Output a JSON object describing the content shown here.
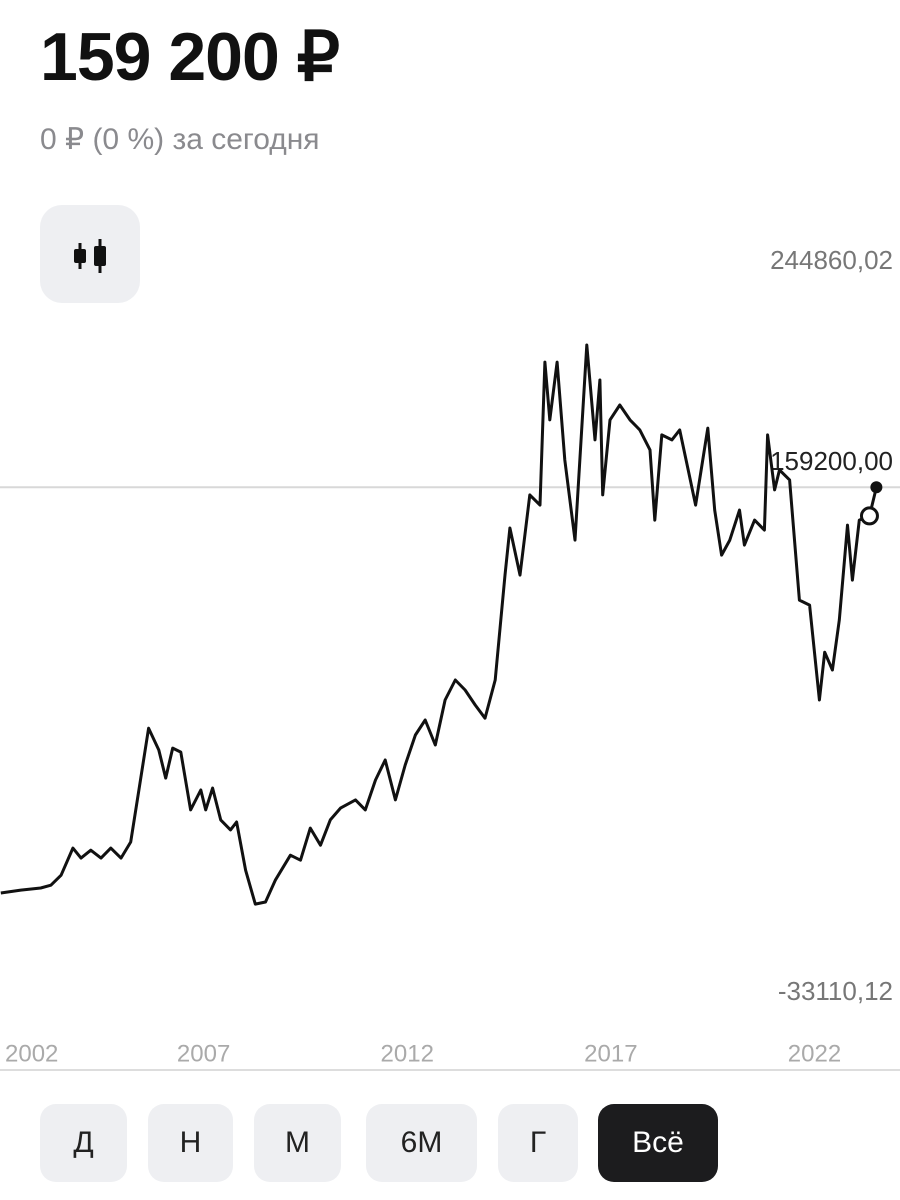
{
  "header": {
    "price": "159 200 ₽",
    "change": "0 ₽ (0 %) за сегодня"
  },
  "periods": {
    "buttons": [
      "Д",
      "Н",
      "М",
      "6М",
      "Г",
      "Всё"
    ],
    "active": "Всё"
  },
  "chart_data": {
    "type": "line",
    "x": [
      2002.02,
      2002.51,
      2003.0,
      2003.25,
      2003.5,
      2003.79,
      2003.99,
      2004.23,
      2004.48,
      2004.72,
      2004.97,
      2005.21,
      2005.41,
      2005.65,
      2005.9,
      2006.07,
      2006.24,
      2006.44,
      2006.68,
      2006.93,
      2007.05,
      2007.22,
      2007.42,
      2007.66,
      2007.81,
      2008.03,
      2008.27,
      2008.52,
      2008.76,
      2009.13,
      2009.38,
      2009.62,
      2009.87,
      2010.11,
      2010.36,
      2010.73,
      2010.97,
      2011.22,
      2011.46,
      2011.71,
      2011.95,
      2012.2,
      2012.44,
      2012.69,
      2012.93,
      2013.18,
      2013.42,
      2013.67,
      2013.91,
      2014.16,
      2014.4,
      2014.52,
      2014.77,
      2015.01,
      2015.26,
      2015.38,
      2015.5,
      2015.68,
      2015.87,
      2016.12,
      2016.41,
      2016.61,
      2016.73,
      2016.8,
      2016.98,
      2017.22,
      2017.47,
      2017.71,
      2017.96,
      2018.08,
      2018.25,
      2018.5,
      2018.69,
      2018.89,
      2019.08,
      2019.38,
      2019.55,
      2019.72,
      2019.92,
      2020.16,
      2020.28,
      2020.53,
      2020.77,
      2020.85,
      2021.02,
      2021.14,
      2021.39,
      2021.63,
      2021.88,
      2022.12,
      2022.25,
      2022.44,
      2022.61,
      2022.81,
      2022.93,
      2023.1,
      2023.35,
      2023.52
    ],
    "series": [
      {
        "color": "#111111",
        "values": [
          4900,
          6000,
          6800,
          7900,
          11700,
          22000,
          18200,
          21200,
          18200,
          22000,
          18200,
          24300,
          44100,
          67600,
          59300,
          48600,
          60000,
          58500,
          36500,
          44100,
          36500,
          44800,
          32700,
          28900,
          31900,
          13600,
          700,
          1500,
          9800,
          19300,
          17400,
          29600,
          23100,
          32700,
          37200,
          40300,
          36500,
          47900,
          55500,
          40300,
          53600,
          65000,
          70700,
          61200,
          78300,
          85900,
          82100,
          76400,
          71400,
          85900,
          125800,
          143700,
          125800,
          156300,
          152400,
          206800,
          184800,
          206800,
          169600,
          139100,
          213300,
          177200,
          200000,
          156300,
          184800,
          190500,
          184800,
          181000,
          173400,
          146700,
          179100,
          177200,
          181000,
          166500,
          152400,
          181700,
          150500,
          133400,
          139100,
          150500,
          137200,
          146700,
          142900,
          179100,
          158200,
          165800,
          162000,
          116300,
          114400,
          78300,
          96500,
          89700,
          108700,
          144800,
          123900,
          146700,
          148300,
          159200
        ]
      }
    ],
    "xlim": [
      2002,
      2024.1
    ],
    "xticks": [
      2002,
      2007,
      2012,
      2017,
      2022
    ],
    "ylim": [
      -33110.12,
      244860.02
    ],
    "yticks": [
      {
        "value": 244860.02,
        "label": "244860,02"
      },
      {
        "value": -33110.12,
        "label": "-33110,12"
      }
    ],
    "reference_line": {
      "value": 159200,
      "label": "159200,00"
    }
  }
}
